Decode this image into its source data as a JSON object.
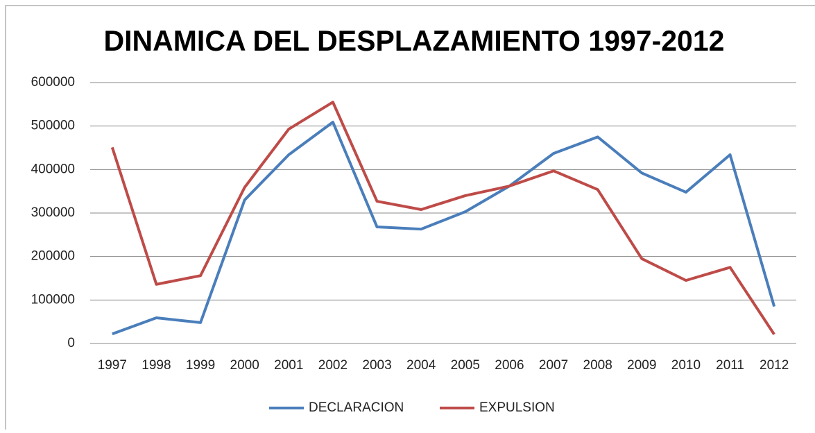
{
  "chart_data": {
    "type": "line",
    "title": "DINAMICA DEL DESPLAZAMIENTO 1997-2012",
    "categories": [
      "1997",
      "1998",
      "1999",
      "2000",
      "2001",
      "2002",
      "2003",
      "2004",
      "2005",
      "2006",
      "2007",
      "2008",
      "2009",
      "2010",
      "2011",
      "2012"
    ],
    "series": [
      {
        "name": "DECLARACION",
        "color": "#4a7ebb",
        "values": [
          22000,
          59000,
          48000,
          330000,
          434000,
          509000,
          268000,
          263000,
          303000,
          362000,
          437000,
          475000,
          392000,
          348000,
          434000,
          85000
        ]
      },
      {
        "name": "EXPULSION",
        "color": "#be4b48",
        "values": [
          451000,
          136000,
          156000,
          359000,
          493000,
          555000,
          327000,
          308000,
          340000,
          362000,
          397000,
          354000,
          195000,
          145000,
          175000,
          21000
        ]
      }
    ],
    "ylim": [
      0,
      600000
    ],
    "yticks": [
      0,
      100000,
      200000,
      300000,
      400000,
      500000,
      600000
    ],
    "grid": true,
    "legend": "bottom"
  }
}
